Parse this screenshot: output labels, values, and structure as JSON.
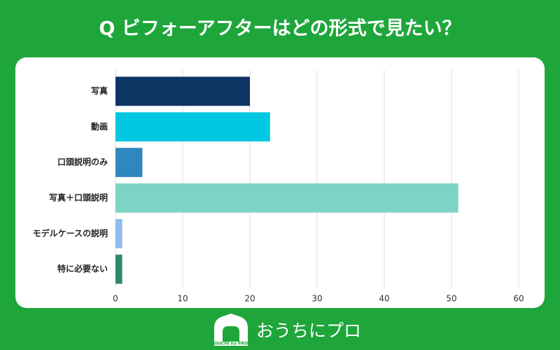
{
  "chart_data": {
    "type": "barh",
    "title": "Q ビフォーアフターはどの形式で見たい？",
    "categories": [
      "写真",
      "動画",
      "口頭説明のみ",
      "写真＋口頭説明",
      "モデルケースの説明",
      "特に必要ない"
    ],
    "values": [
      20,
      23,
      4,
      51,
      1,
      1
    ],
    "colors": [
      "#0f3565",
      "#00c8e2",
      "#2f87c0",
      "#7dd4c4",
      "#8cbcf0",
      "#2b8a6c"
    ],
    "xlim": [
      0,
      60
    ],
    "xticks": [
      0,
      10,
      20,
      30,
      40,
      50,
      60
    ],
    "grid": true
  },
  "brand": {
    "name": "おうちにプロ",
    "logo_text": "OUCHI no PRO"
  }
}
